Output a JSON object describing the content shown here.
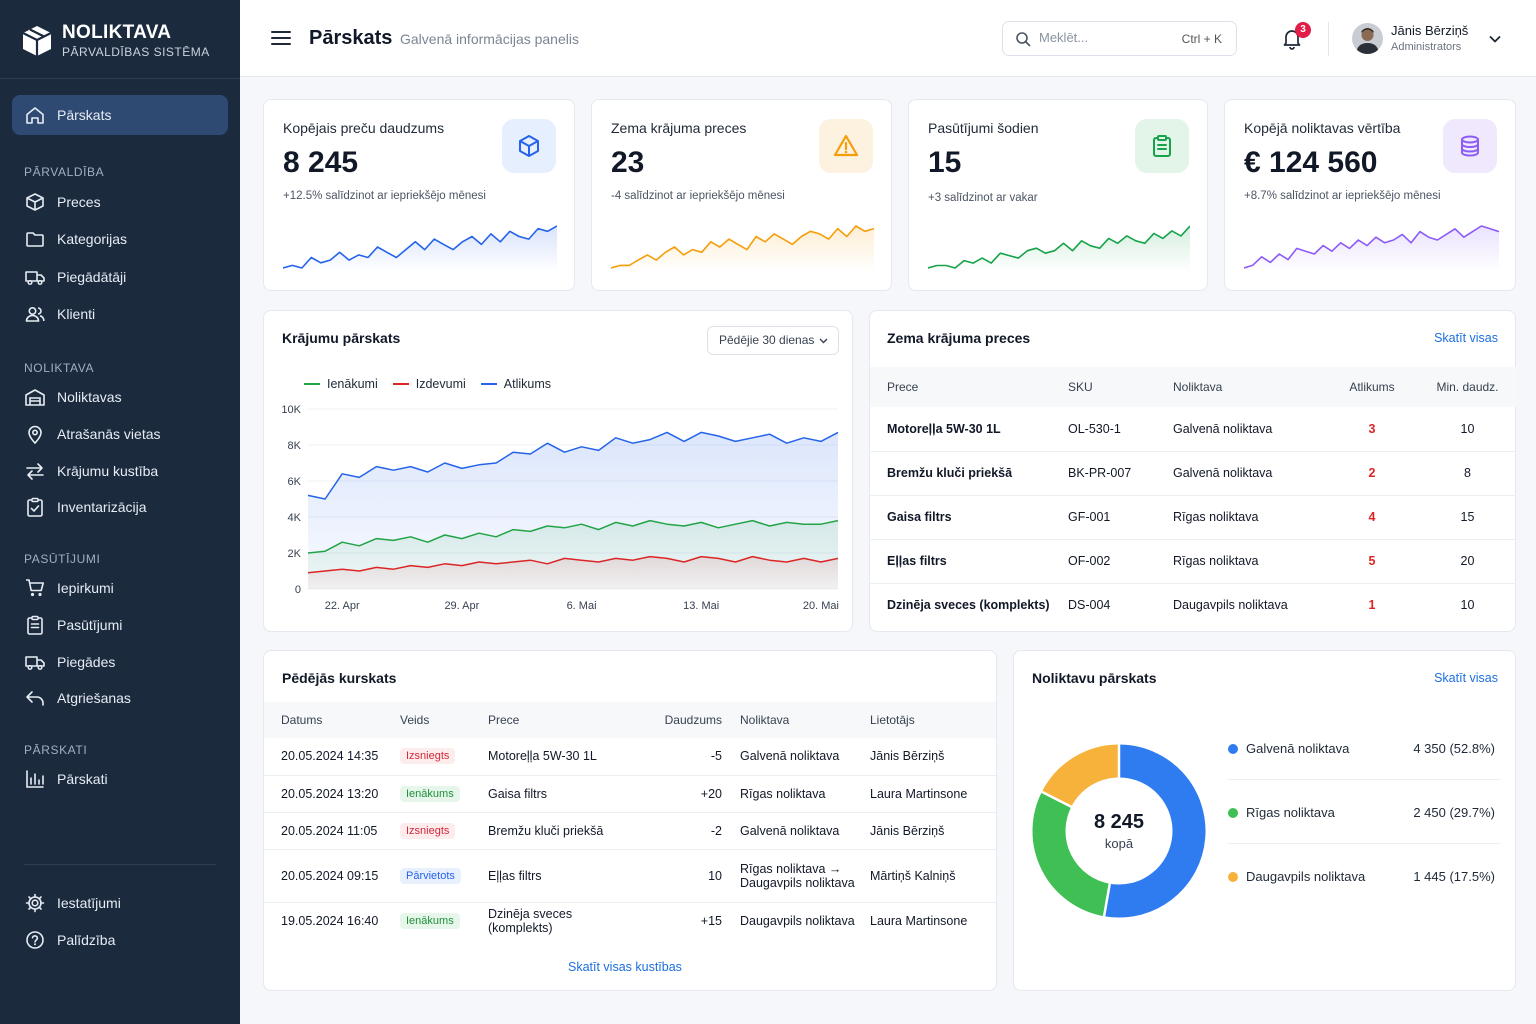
{
  "app": {
    "title": "NOLIKTAVA",
    "subtitle": "PĀRVALDĪBAS SISTĒMA"
  },
  "sidebar": {
    "top": [
      {
        "label": "Pārskats",
        "icon": "home-icon",
        "active": true
      }
    ],
    "sections": [
      {
        "title": "PĀRVALDĪBA",
        "items": [
          {
            "label": "Preces",
            "icon": "box-icon"
          },
          {
            "label": "Kategorijas",
            "icon": "folder-icon"
          },
          {
            "label": "Piegādātāji",
            "icon": "truck-icon"
          },
          {
            "label": "Klienti",
            "icon": "users-icon"
          }
        ]
      },
      {
        "title": "NOLIKTAVA",
        "items": [
          {
            "label": "Noliktavas",
            "icon": "warehouse-icon"
          },
          {
            "label": "Atrašanās vietas",
            "icon": "map-pin-icon"
          },
          {
            "label": "Krājumu kustība",
            "icon": "arrows-swap-icon"
          },
          {
            "label": "Inventarizācija",
            "icon": "clipboard-check-icon"
          }
        ]
      },
      {
        "title": "PASŪTĪJUMI",
        "items": [
          {
            "label": "Iepirkumi",
            "icon": "cart-icon"
          },
          {
            "label": "Pasūtījumi",
            "icon": "clipboard-list-icon"
          },
          {
            "label": "Piegādes",
            "icon": "delivery-truck-icon"
          },
          {
            "label": "Atgriešanas",
            "icon": "return-arrow-icon"
          }
        ]
      },
      {
        "title": "PĀRSKATI",
        "items": [
          {
            "label": "Pārskati",
            "icon": "bar-chart-icon"
          }
        ]
      }
    ],
    "bottom": [
      {
        "label": "Iestatījumi",
        "icon": "gear-icon"
      },
      {
        "label": "Palīdzība",
        "icon": "help-circle-icon"
      }
    ]
  },
  "header": {
    "title": "Pārskats",
    "subtitle": "Galvenā informācijas panelis",
    "search": {
      "placeholder": "Meklēt...",
      "shortcut": "Ctrl + K"
    },
    "notifications_count": "3",
    "user": {
      "name": "Jānis Bērziņš",
      "role": "Administrators"
    }
  },
  "kpis": [
    {
      "label": "Kopējais preču daudzums",
      "value": "8 245",
      "change": "+12.5% salīdzinot ar iepriekšējo mēnesi",
      "color": "#2563eb",
      "icon": "cube-icon"
    },
    {
      "label": "Zema krājuma preces",
      "value": "23",
      "change": "-4 salīdzinot ar iepriekšējo mēnesi",
      "color": "#f59e0b",
      "icon": "warning-icon"
    },
    {
      "label": "Pasūtījumi šodien",
      "value": "15",
      "change": "+3 salīdzinot ar vakar",
      "color": "#16a34a",
      "icon": "clipboard-icon"
    },
    {
      "label": "Kopējā noliktavas vērtība",
      "value": "€ 124 560",
      "change": "+8.7% salīdzinot ar iepriekšējo mēnesi",
      "color": "#8b5cf6",
      "icon": "database-icon"
    }
  ],
  "stock_chart": {
    "title": "Krājumu pārskats",
    "range": "Pēdējie 30 dienas",
    "legend": [
      "Ienākumi",
      "Izdevumi",
      "Atlikums"
    ]
  },
  "chart_data": {
    "type": "area",
    "x": [
      "20. Apr",
      "21. Apr",
      "22. Apr",
      "23. Apr",
      "24. Apr",
      "25. Apr",
      "26. Apr",
      "27. Apr",
      "28. Apr",
      "29. Apr",
      "30. Apr",
      "1. Mai",
      "2. Mai",
      "3. Mai",
      "4. Mai",
      "5. Mai",
      "6. Mai",
      "7. Mai",
      "8. Mai",
      "9. Mai",
      "10. Mai",
      "11. Mai",
      "12. Mai",
      "13. Mai",
      "14. Mai",
      "15. Mai",
      "16. Mai",
      "17. Mai",
      "18. Mai",
      "19. Mai",
      "20. Mai",
      "21. Mai"
    ],
    "x_ticks": [
      "22. Apr",
      "29. Apr",
      "6. Mai",
      "13. Mai",
      "20. Mai"
    ],
    "y_ticks": [
      "0",
      "2K",
      "4K",
      "6K",
      "8K",
      "10K"
    ],
    "ylim": [
      0,
      10000
    ],
    "series": [
      {
        "name": "Ienākumi",
        "color": "#22a447",
        "values": [
          2000,
          2100,
          2600,
          2400,
          2800,
          2700,
          2900,
          2600,
          3000,
          2800,
          3100,
          2900,
          3300,
          3200,
          3500,
          3400,
          3600,
          3300,
          3700,
          3500,
          3800,
          3600,
          3500,
          3700,
          3400,
          3600,
          3800,
          3500,
          3700,
          3600,
          3600,
          3800
        ]
      },
      {
        "name": "Izdevumi",
        "color": "#dc2626",
        "values": [
          900,
          1000,
          1100,
          1000,
          1200,
          1100,
          1300,
          1200,
          1400,
          1300,
          1500,
          1400,
          1500,
          1600,
          1400,
          1700,
          1600,
          1500,
          1700,
          1600,
          1800,
          1700,
          1500,
          1800,
          1700,
          1500,
          1800,
          1600,
          1500,
          1700,
          1500,
          1700
        ]
      },
      {
        "name": "Atlikums",
        "color": "#2563eb",
        "values": [
          5200,
          5000,
          6400,
          6200,
          6800,
          6600,
          6800,
          6500,
          7000,
          6700,
          6900,
          7000,
          7600,
          7500,
          8100,
          7600,
          7900,
          7700,
          8400,
          8100,
          8300,
          8700,
          8200,
          8700,
          8500,
          8200,
          8400,
          8600,
          8100,
          8400,
          8200,
          8700
        ]
      }
    ]
  },
  "low_stock": {
    "title": "Zema krājuma preces",
    "link": "Skatīt visas",
    "columns": [
      "Prece",
      "SKU",
      "Noliktava",
      "Atlikums",
      "Min. daudz."
    ],
    "rows": [
      [
        "Motoreļļa 5W-30 1L",
        "OL-530-1",
        "Galvenā noliktava",
        "3",
        "10"
      ],
      [
        "Bremžu kluči priekšā",
        "BK-PR-007",
        "Galvenā noliktava",
        "2",
        "8"
      ],
      [
        "Gaisa filtrs",
        "GF-001",
        "Rīgas noliktava",
        "4",
        "15"
      ],
      [
        "Eļļas filtrs",
        "OF-002",
        "Rīgas noliktava",
        "5",
        "20"
      ],
      [
        "Dzinēja sveces (komplekts)",
        "DS-004",
        "Daugavpils noliktava",
        "1",
        "10"
      ]
    ]
  },
  "movements": {
    "title": "Pēdējās kurskats",
    "columns": [
      "Datums",
      "Veids",
      "Prece",
      "Daudzums",
      "Noliktava",
      "Lietotājs"
    ],
    "rows": [
      {
        "date": "20.05.2024 14:35",
        "type": "Izsniegts",
        "kind": "out",
        "item": "Motoreļļa 5W-30 1L",
        "qty": "-5",
        "wh": "Galvenā noliktava",
        "wh2": "",
        "user": "Jānis Bērziņš"
      },
      {
        "date": "20.05.2024 13:20",
        "type": "Ienākums",
        "kind": "in",
        "item": "Gaisa filtrs",
        "qty": "+20",
        "wh": "Rīgas noliktava",
        "wh2": "",
        "user": "Laura Martinsone"
      },
      {
        "date": "20.05.2024 11:05",
        "type": "Izsniegts",
        "kind": "out",
        "item": "Bremžu kluči priekšā",
        "qty": "-2",
        "wh": "Galvenā noliktava",
        "wh2": "",
        "user": "Jānis Bērziņš"
      },
      {
        "date": "20.05.2024 09:15",
        "type": "Pārvietots",
        "kind": "move",
        "item": "Eļļas filtrs",
        "qty": "10",
        "wh": "Rīgas noliktava →",
        "wh2": "Daugavpils noliktava",
        "user": "Mārtiņš Kalniņš"
      },
      {
        "date": "19.05.2024 16:40",
        "type": "Ienākums",
        "kind": "in",
        "item": "Dzinēja sveces (komplekts)",
        "qty": "+15",
        "wh": "Daugavpils noliktava",
        "wh2": "",
        "user": "Laura Martinsone"
      }
    ],
    "link": "Skatīt visas kustības"
  },
  "warehouses": {
    "title": "Noliktavu pārskats",
    "link": "Skatīt visas",
    "total": "8 245",
    "total_label": "kopā",
    "items": [
      {
        "name": "Galvenā noliktava",
        "value": 4350,
        "display": "4 350 (52.8%)",
        "color": "#2f7cf0"
      },
      {
        "name": "Rīgas noliktava",
        "value": 2450,
        "display": "2 450 (29.7%)",
        "color": "#3fbf54"
      },
      {
        "name": "Daugavpils noliktava",
        "value": 1445,
        "display": "1 445 (17.5%)",
        "color": "#f7b23b"
      }
    ]
  }
}
